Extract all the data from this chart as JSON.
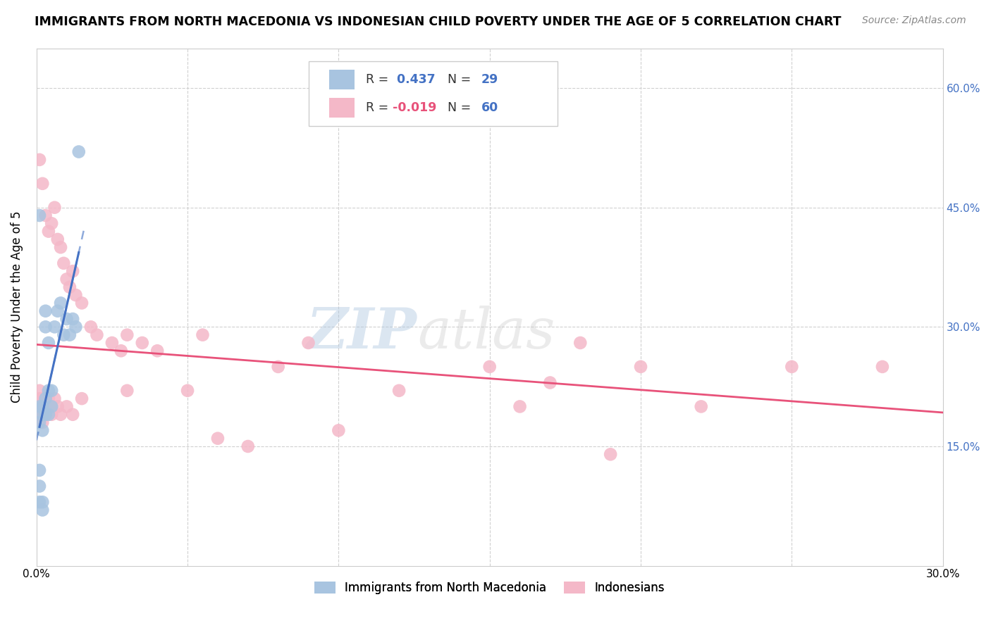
{
  "title": "IMMIGRANTS FROM NORTH MACEDONIA VS INDONESIAN CHILD POVERTY UNDER THE AGE OF 5 CORRELATION CHART",
  "source": "Source: ZipAtlas.com",
  "ylabel": "Child Poverty Under the Age of 5",
  "xlim": [
    0.0,
    0.3
  ],
  "ylim": [
    0.0,
    0.65
  ],
  "yticks": [
    0.0,
    0.15,
    0.3,
    0.45,
    0.6
  ],
  "legend_R1": "0.437",
  "legend_N1": "29",
  "legend_R2": "-0.019",
  "legend_N2": "60",
  "blue_color": "#a8c4e0",
  "blue_line_color": "#4472c4",
  "pink_color": "#f4b8c8",
  "pink_line_color": "#e8527a",
  "watermark_zip": "ZIP",
  "watermark_atlas": "atlas",
  "blue_scatter_x": [
    0.001,
    0.001,
    0.001,
    0.001,
    0.001,
    0.001,
    0.002,
    0.002,
    0.002,
    0.002,
    0.002,
    0.003,
    0.003,
    0.003,
    0.003,
    0.004,
    0.004,
    0.004,
    0.005,
    0.005,
    0.006,
    0.007,
    0.008,
    0.009,
    0.01,
    0.011,
    0.012,
    0.013,
    0.014
  ],
  "blue_scatter_y": [
    0.08,
    0.1,
    0.12,
    0.18,
    0.2,
    0.44,
    0.07,
    0.08,
    0.17,
    0.19,
    0.2,
    0.19,
    0.21,
    0.3,
    0.32,
    0.19,
    0.22,
    0.28,
    0.2,
    0.22,
    0.3,
    0.32,
    0.33,
    0.29,
    0.31,
    0.29,
    0.31,
    0.3,
    0.52
  ],
  "pink_scatter_x": [
    0.001,
    0.001,
    0.001,
    0.001,
    0.001,
    0.002,
    0.002,
    0.002,
    0.002,
    0.002,
    0.003,
    0.003,
    0.003,
    0.003,
    0.004,
    0.004,
    0.004,
    0.005,
    0.005,
    0.005,
    0.006,
    0.006,
    0.007,
    0.007,
    0.008,
    0.008,
    0.009,
    0.01,
    0.01,
    0.011,
    0.012,
    0.012,
    0.013,
    0.015,
    0.015,
    0.018,
    0.02,
    0.025,
    0.028,
    0.03,
    0.03,
    0.035,
    0.04,
    0.05,
    0.055,
    0.06,
    0.07,
    0.08,
    0.09,
    0.1,
    0.12,
    0.15,
    0.16,
    0.17,
    0.18,
    0.19,
    0.2,
    0.22,
    0.25,
    0.28
  ],
  "pink_scatter_y": [
    0.19,
    0.2,
    0.21,
    0.22,
    0.51,
    0.18,
    0.19,
    0.2,
    0.21,
    0.48,
    0.19,
    0.2,
    0.21,
    0.44,
    0.2,
    0.21,
    0.42,
    0.19,
    0.2,
    0.43,
    0.21,
    0.45,
    0.2,
    0.41,
    0.19,
    0.4,
    0.38,
    0.2,
    0.36,
    0.35,
    0.19,
    0.37,
    0.34,
    0.21,
    0.33,
    0.3,
    0.29,
    0.28,
    0.27,
    0.22,
    0.29,
    0.28,
    0.27,
    0.22,
    0.29,
    0.16,
    0.15,
    0.25,
    0.28,
    0.17,
    0.22,
    0.25,
    0.2,
    0.23,
    0.28,
    0.14,
    0.25,
    0.2,
    0.25,
    0.25
  ]
}
